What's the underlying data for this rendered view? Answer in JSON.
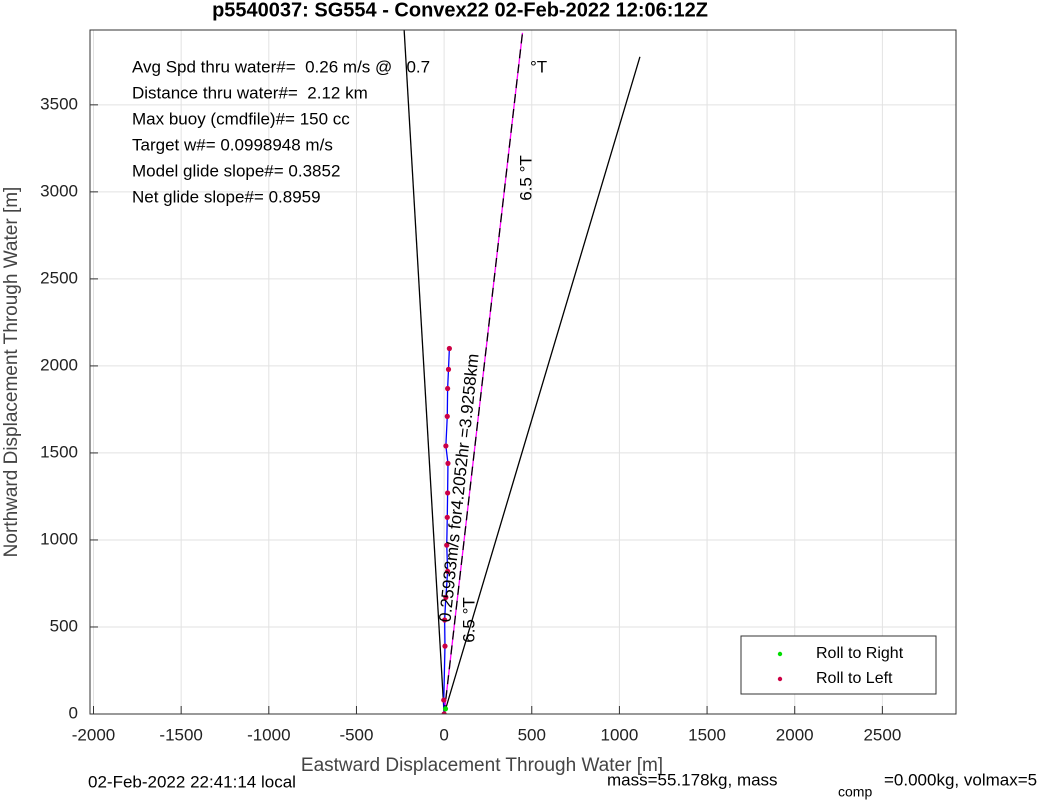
{
  "chart_data": {
    "type": "line",
    "title": "p5540037: SG554 - Convex22 02-Feb-2022 12:06:12Z",
    "xlabel": "Eastward Displacement Through Water [m]",
    "ylabel": "Northward Displacement Through Water [m]",
    "xlim": [
      -2020,
      2920
    ],
    "ylim": [
      0,
      3930
    ],
    "xticks": [
      -2000,
      -1500,
      -1000,
      -500,
      0,
      500,
      1000,
      1500,
      2000,
      2500
    ],
    "yticks": [
      0,
      500,
      1000,
      1500,
      2000,
      2500,
      3000,
      3500
    ],
    "grid": true,
    "legend": "lower right",
    "series": [
      {
        "color": "#000000",
        "x": [
          0,
          -228
        ],
        "values": [
          0,
          3930
        ],
        "style": "line"
      },
      {
        "color": "#000000",
        "x": [
          0,
          1117
        ],
        "values": [
          0,
          3776
        ],
        "style": "line"
      },
      {
        "color": "#ff00ff",
        "x": [
          0,
          447
        ],
        "values": [
          0,
          3914
        ],
        "style": "line"
      },
      {
        "color": "#000000",
        "x": [
          0,
          447
        ],
        "values": [
          0,
          3914
        ],
        "style": "dash"
      },
      {
        "color": "#0000ff",
        "x": [
          0,
          -2,
          5,
          3,
          10,
          20,
          15,
          18,
          20,
          22,
          10,
          18,
          20,
          25,
          30
        ],
        "values": [
          0,
          80,
          390,
          540,
          670,
          820,
          970,
          1130,
          1270,
          1440,
          1540,
          1710,
          1870,
          1980,
          2100
        ],
        "style": "line"
      },
      {
        "name": "Roll to Right",
        "color": "#00dd00",
        "x": [
          8
        ],
        "values": [
          30
        ],
        "style": "dots"
      },
      {
        "name": "Roll to Left",
        "color": "#cc0044",
        "x": [
          0,
          -2,
          5,
          3,
          10,
          20,
          15,
          18,
          20,
          22,
          10,
          18,
          20,
          25,
          30
        ],
        "values": [
          0,
          80,
          390,
          540,
          670,
          820,
          970,
          1130,
          1270,
          1440,
          1540,
          1710,
          1870,
          1980,
          2100
        ],
        "style": "dots"
      }
    ],
    "annotations": [
      "Avg Spd thru water#=  0.26 m/s @   0.7",
      "Distance thru water#=  2.12 km",
      "Max buoy (cmdfile)#= 150 cc",
      "Target w#= 0.0998948 m/s",
      "Model glide slope#= 0.3852",
      "Net glide slope#= 0.8959",
      "°T",
      "6.5 °T",
      "6.5 °T",
      "0.25933m/s for4.2052hr =3.9258km"
    ],
    "footer": [
      "02-Feb-2022 22:41:14 local",
      "mass=55.178kg, mass",
      "comp",
      "=0.000kg, volmax=5"
    ]
  }
}
